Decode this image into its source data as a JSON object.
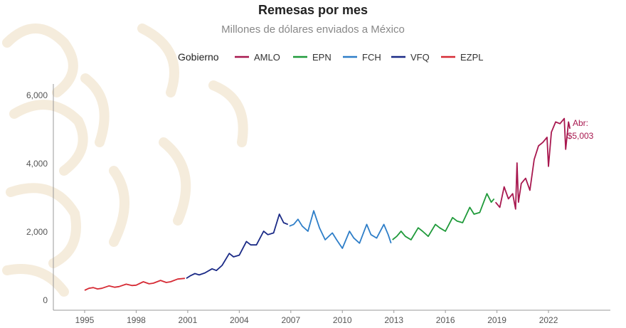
{
  "chart_data": {
    "type": "line",
    "title": "Remesas por mes",
    "subtitle": "Millones de dólares enviados a México",
    "legend_title": "Gobierno",
    "legend_placement": "top",
    "xlabel": "",
    "ylabel": "",
    "ylim": [
      0,
      6000
    ],
    "xlim": [
      "1993-10",
      "2024-12"
    ],
    "grid": false,
    "y_ticks": [
      "0",
      "2,000",
      "4,000",
      "6,000"
    ],
    "x_ticks": [
      "1995",
      "1998",
      "2001",
      "2004",
      "2007",
      "2010",
      "2013",
      "2016",
      "2019",
      "2022"
    ],
    "annotation": {
      "line1": "Abr:",
      "line2": "$5,003"
    },
    "series": [
      {
        "name": "AMLO",
        "color": "#a8184f",
        "points": [
          [
            "2018-12",
            2850
          ],
          [
            "2019-03",
            2700
          ],
          [
            "2019-06",
            3300
          ],
          [
            "2019-09",
            2950
          ],
          [
            "2019-12",
            3100
          ],
          [
            "2020-02",
            2650
          ],
          [
            "2020-03",
            4000
          ],
          [
            "2020-04",
            2850
          ],
          [
            "2020-06",
            3400
          ],
          [
            "2020-09",
            3550
          ],
          [
            "2020-12",
            3200
          ],
          [
            "2021-03",
            4100
          ],
          [
            "2021-06",
            4500
          ],
          [
            "2021-09",
            4600
          ],
          [
            "2021-12",
            4750
          ],
          [
            "2022-01",
            3900
          ],
          [
            "2022-03",
            4900
          ],
          [
            "2022-06",
            5200
          ],
          [
            "2022-09",
            5150
          ],
          [
            "2022-12",
            5300
          ],
          [
            "2023-01",
            4400
          ],
          [
            "2023-03",
            5200
          ],
          [
            "2023-04",
            5003
          ]
        ]
      },
      {
        "name": "EPN",
        "color": "#1f9a3a",
        "points": [
          [
            "2012-12",
            1750
          ],
          [
            "2013-03",
            1850
          ],
          [
            "2013-06",
            2000
          ],
          [
            "2013-09",
            1850
          ],
          [
            "2014-01",
            1750
          ],
          [
            "2014-06",
            2100
          ],
          [
            "2014-09",
            2000
          ],
          [
            "2015-01",
            1850
          ],
          [
            "2015-06",
            2200
          ],
          [
            "2015-09",
            2100
          ],
          [
            "2016-01",
            2000
          ],
          [
            "2016-06",
            2400
          ],
          [
            "2016-09",
            2300
          ],
          [
            "2017-01",
            2250
          ],
          [
            "2017-06",
            2700
          ],
          [
            "2017-09",
            2500
          ],
          [
            "2018-01",
            2550
          ],
          [
            "2018-06",
            3100
          ],
          [
            "2018-09",
            2850
          ],
          [
            "2018-11",
            2950
          ]
        ]
      },
      {
        "name": "FCH",
        "color": "#2e7ec8",
        "points": [
          [
            "2006-12",
            2150
          ],
          [
            "2007-03",
            2200
          ],
          [
            "2007-06",
            2350
          ],
          [
            "2007-09",
            2150
          ],
          [
            "2008-01",
            2000
          ],
          [
            "2008-05",
            2600
          ],
          [
            "2008-09",
            2100
          ],
          [
            "2009-01",
            1750
          ],
          [
            "2009-06",
            1950
          ],
          [
            "2009-09",
            1750
          ],
          [
            "2010-01",
            1500
          ],
          [
            "2010-06",
            2000
          ],
          [
            "2010-09",
            1800
          ],
          [
            "2011-01",
            1650
          ],
          [
            "2011-06",
            2200
          ],
          [
            "2011-09",
            1900
          ],
          [
            "2012-01",
            1800
          ],
          [
            "2012-06",
            2200
          ],
          [
            "2012-09",
            1900
          ],
          [
            "2012-11",
            1650
          ]
        ]
      },
      {
        "name": "VFQ",
        "color": "#1a2a86",
        "points": [
          [
            "2000-12",
            620
          ],
          [
            "2001-03",
            700
          ],
          [
            "2001-06",
            760
          ],
          [
            "2001-09",
            720
          ],
          [
            "2002-01",
            780
          ],
          [
            "2002-06",
            900
          ],
          [
            "2002-09",
            850
          ],
          [
            "2003-01",
            1000
          ],
          [
            "2003-06",
            1350
          ],
          [
            "2003-09",
            1250
          ],
          [
            "2004-01",
            1300
          ],
          [
            "2004-06",
            1700
          ],
          [
            "2004-09",
            1600
          ],
          [
            "2005-01",
            1600
          ],
          [
            "2005-06",
            2000
          ],
          [
            "2005-09",
            1900
          ],
          [
            "2006-01",
            1950
          ],
          [
            "2006-05",
            2500
          ],
          [
            "2006-08",
            2250
          ],
          [
            "2006-11",
            2200
          ]
        ]
      },
      {
        "name": "EZPL",
        "color": "#d62b35",
        "points": [
          [
            "1995-01",
            270
          ],
          [
            "1995-04",
            330
          ],
          [
            "1995-07",
            350
          ],
          [
            "1995-10",
            310
          ],
          [
            "1996-01",
            330
          ],
          [
            "1996-06",
            400
          ],
          [
            "1996-10",
            360
          ],
          [
            "1997-01",
            380
          ],
          [
            "1997-06",
            450
          ],
          [
            "1997-10",
            410
          ],
          [
            "1998-01",
            420
          ],
          [
            "1998-06",
            520
          ],
          [
            "1998-10",
            460
          ],
          [
            "1999-01",
            480
          ],
          [
            "1999-06",
            560
          ],
          [
            "1999-10",
            500
          ],
          [
            "2000-01",
            520
          ],
          [
            "2000-06",
            600
          ],
          [
            "2000-11",
            620
          ]
        ]
      }
    ]
  }
}
